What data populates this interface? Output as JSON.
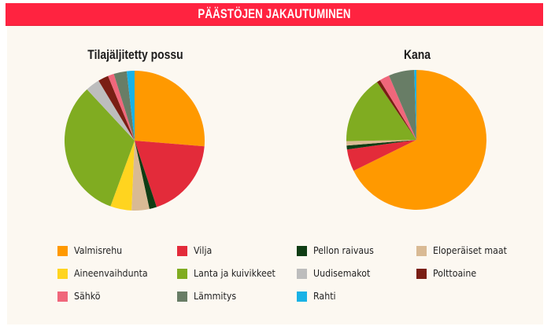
{
  "header": {
    "title": "PÄÄSTÖJEN JAKAUTUMINEN",
    "color": "#FF2340"
  },
  "categories": [
    {
      "key": "valmisrehu",
      "label": "Valmisrehu",
      "color": "#FF9900"
    },
    {
      "key": "vilja",
      "label": "Vilja",
      "color": "#E32B3A"
    },
    {
      "key": "pellon_raivaus",
      "label": "Pellon raivaus",
      "color": "#0F3D14"
    },
    {
      "key": "eloperaiset_maat",
      "label": "Eloperäiset maat",
      "color": "#D9BA94"
    },
    {
      "key": "aineenvaihdunta",
      "label": "Aineenvaihdunta",
      "color": "#FFD41F"
    },
    {
      "key": "lanta",
      "label": "Lanta ja kuivikkeet",
      "color": "#80AC21"
    },
    {
      "key": "uudisemakot",
      "label": "Uudisemakot",
      "color": "#BDBDBD"
    },
    {
      "key": "polttoaine",
      "label": "Polttoaine",
      "color": "#7A1E14"
    },
    {
      "key": "sahko",
      "label": "Sähkö",
      "color": "#F0677B"
    },
    {
      "key": "lammitys",
      "label": "Lämmitys",
      "color": "#687D66"
    },
    {
      "key": "rahti",
      "label": "Rahti",
      "color": "#19B2E6"
    }
  ],
  "legend_order": [
    [
      "valmisrehu",
      "vilja",
      "pellon_raivaus",
      "eloperaiset_maat"
    ],
    [
      "aineenvaihdunta",
      "lanta",
      "uudisemakot",
      "polttoaine"
    ],
    [
      "sahko",
      "lammitys",
      "rahti"
    ]
  ],
  "chart_data": [
    {
      "type": "pie",
      "title": "Tilajäljitetty possu",
      "unit": "% (estimated from slice angles)",
      "start_angle": "12 o'clock, clockwise",
      "categories": [
        "Valmisrehu",
        "Vilja",
        "Pellon raivaus",
        "Eloperäiset maat",
        "Aineenvaihdunta",
        "Lanta ja kuivikkeet",
        "Uudisemakot",
        "Polttoaine",
        "Sähkö",
        "Lämmitys",
        "Rahti"
      ],
      "values": [
        26.3,
        18.6,
        1.7,
        4.1,
        4.9,
        32.5,
        3.3,
        2.4,
        1.4,
        3.0,
        1.8
      ]
    },
    {
      "type": "pie",
      "title": "Kana",
      "unit": "% (estimated from slice angles)",
      "start_angle": "12 o'clock, clockwise",
      "categories": [
        "Valmisrehu",
        "Vilja",
        "Pellon raivaus",
        "Eloperäiset maat",
        "Aineenvaihdunta",
        "Lanta ja kuivikkeet",
        "Uudisemakot",
        "Polttoaine",
        "Sähkö",
        "Lämmitys",
        "Rahti"
      ],
      "values": [
        67.7,
        5.1,
        0.9,
        1.0,
        0.0,
        15.8,
        0.0,
        0.8,
        2.3,
        5.9,
        0.5
      ]
    }
  ]
}
